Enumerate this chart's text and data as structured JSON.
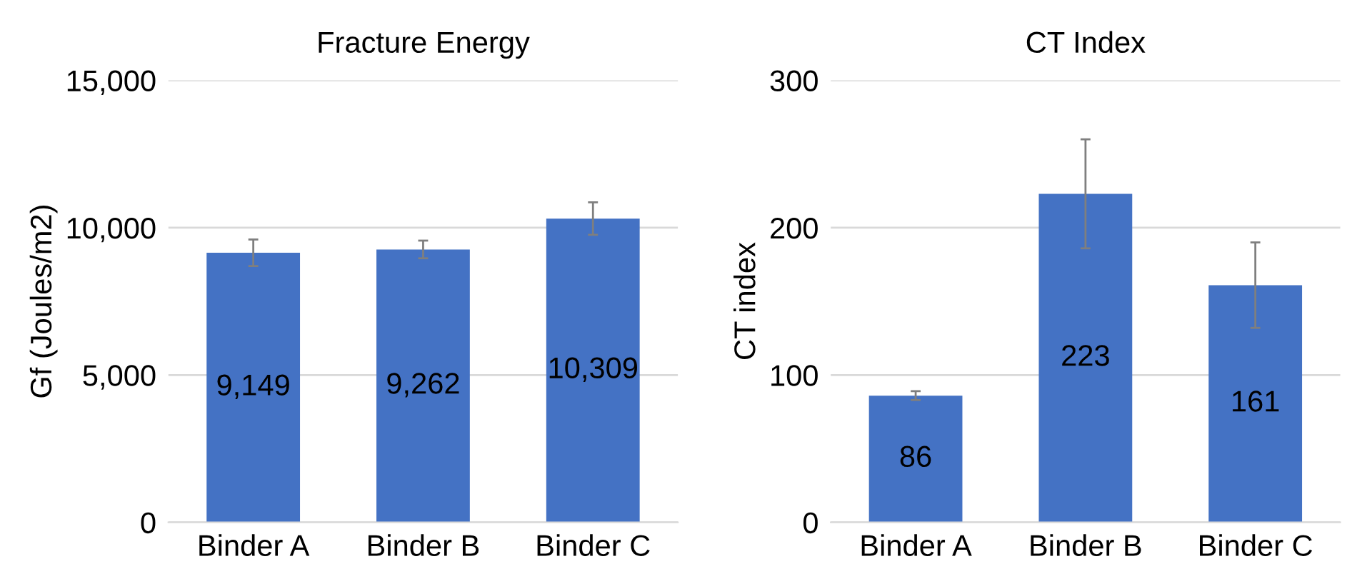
{
  "chart_data": [
    {
      "type": "bar",
      "title": "Fracture Energy",
      "ylabel": "Gf (Joules/m2)",
      "categories": [
        "Binder A",
        "Binder B",
        "Binder C"
      ],
      "values": [
        9149,
        9262,
        10309
      ],
      "errors": [
        450,
        300,
        550
      ],
      "value_labels": [
        "9,149",
        "9,262",
        "10,309"
      ],
      "color": "#4472c4",
      "ylim": [
        0,
        15000
      ],
      "yticks": [
        0,
        {
          "value": 5000,
          "label": "5,000"
        },
        {
          "value": 10000,
          "label": "10,000"
        },
        {
          "value": 15000,
          "label": "15,000"
        }
      ],
      "grid": "y",
      "legend": false
    },
    {
      "type": "bar",
      "title": "CT Index",
      "ylabel": "CT index",
      "categories": [
        "Binder A",
        "Binder B",
        "Binder C"
      ],
      "values": [
        86,
        223,
        161
      ],
      "errors": [
        3,
        37,
        29
      ],
      "data_labels": true,
      "color": "#4472c4",
      "ylim": [
        0,
        300
      ],
      "yticks": [
        0,
        100,
        200,
        300
      ],
      "grid": "y",
      "legend": false
    }
  ]
}
